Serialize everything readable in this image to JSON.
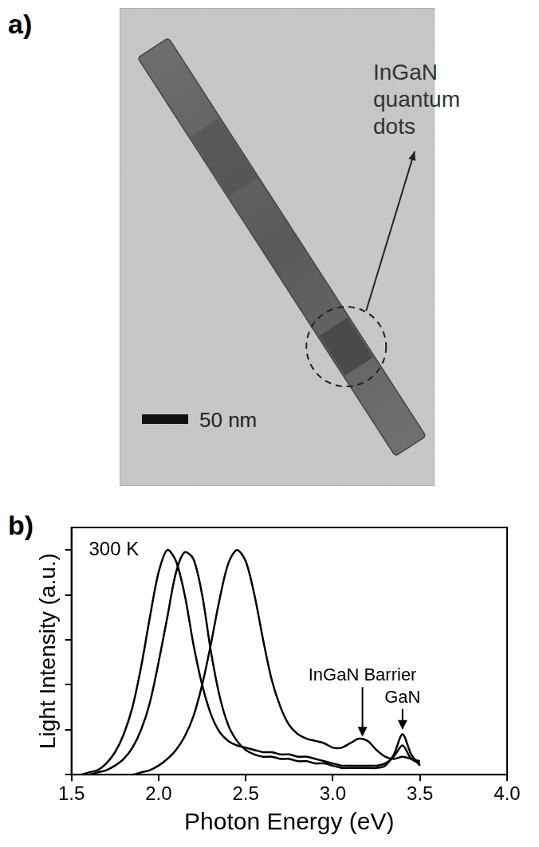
{
  "image_panel": {
    "panel_label": "a)",
    "annotation": "InGaN quantum dots",
    "scale_bar": "50 nm"
  },
  "chart_data": {
    "type": "line",
    "panel_label": "b)",
    "x_label": "Photon Energy (eV)",
    "y_label": "Light Intensity (a.u.)",
    "annotations": [
      {
        "text": "300 K",
        "x": 1.6,
        "y": 1.0
      },
      {
        "text": "InGaN Barrier",
        "x": 3.17,
        "y": 0.17
      },
      {
        "text": "GaN",
        "x": 3.4,
        "y": 0.2
      }
    ],
    "x": [
      1.5,
      1.55,
      1.6,
      1.65,
      1.7,
      1.75,
      1.8,
      1.85,
      1.9,
      1.95,
      2.0,
      2.05,
      2.1,
      2.15,
      2.2,
      2.25,
      2.3,
      2.35,
      2.4,
      2.45,
      2.5,
      2.55,
      2.6,
      2.65,
      2.7,
      2.75,
      2.8,
      2.85,
      2.9,
      2.95,
      3.0,
      3.05,
      3.1,
      3.15,
      3.2,
      3.25,
      3.3,
      3.35,
      3.4,
      3.45,
      3.5
    ],
    "series": [
      {
        "color": "#000000",
        "marker": "none",
        "line_style": "solid",
        "values": [
          0,
          0,
          0.01,
          0.02,
          0.05,
          0.1,
          0.18,
          0.3,
          0.48,
          0.7,
          0.9,
          1.0,
          0.95,
          0.8,
          0.58,
          0.4,
          0.27,
          0.19,
          0.15,
          0.13,
          0.12,
          0.11,
          0.1,
          0.1,
          0.09,
          0.09,
          0.08,
          0.08,
          0.07,
          0.06,
          0.05,
          0.04,
          0.04,
          0.04,
          0.04,
          0.04,
          0.05,
          0.08,
          0.13,
          0.07,
          0.05
        ]
      },
      {
        "color": "#000000",
        "marker": "none",
        "line_style": "solid",
        "values": [
          0,
          0,
          0,
          0.01,
          0.02,
          0.04,
          0.07,
          0.12,
          0.2,
          0.32,
          0.5,
          0.7,
          0.9,
          0.99,
          0.96,
          0.8,
          0.55,
          0.35,
          0.22,
          0.15,
          0.11,
          0.09,
          0.08,
          0.08,
          0.07,
          0.07,
          0.06,
          0.06,
          0.05,
          0.05,
          0.04,
          0.03,
          0.03,
          0.03,
          0.03,
          0.03,
          0.04,
          0.09,
          0.18,
          0.09,
          0.04
        ]
      },
      {
        "color": "#000000",
        "marker": "none",
        "line_style": "solid",
        "values": [
          0,
          0,
          0,
          0,
          0,
          0,
          0,
          0,
          0.01,
          0.02,
          0.04,
          0.07,
          0.11,
          0.17,
          0.26,
          0.4,
          0.58,
          0.78,
          0.94,
          1.0,
          0.95,
          0.8,
          0.6,
          0.42,
          0.3,
          0.22,
          0.18,
          0.16,
          0.15,
          0.14,
          0.12,
          0.12,
          0.14,
          0.16,
          0.15,
          0.11,
          0.08,
          0.07,
          0.08,
          0.07,
          0.06
        ]
      }
    ],
    "xlim": [
      1.5,
      4.0
    ],
    "xticks": [
      1.5,
      {
        "value": 2,
        "label": "2.0"
      },
      2.5,
      {
        "value": 3,
        "label": "3.0"
      },
      3.5,
      {
        "value": 4,
        "label": "4.0"
      }
    ],
    "ylim": [
      0,
      1.1
    ],
    "yticks": [
      0,
      0.2,
      0.4,
      0.6,
      0.8,
      1.0
    ],
    "tick_labels": "x",
    "grid": false
  }
}
